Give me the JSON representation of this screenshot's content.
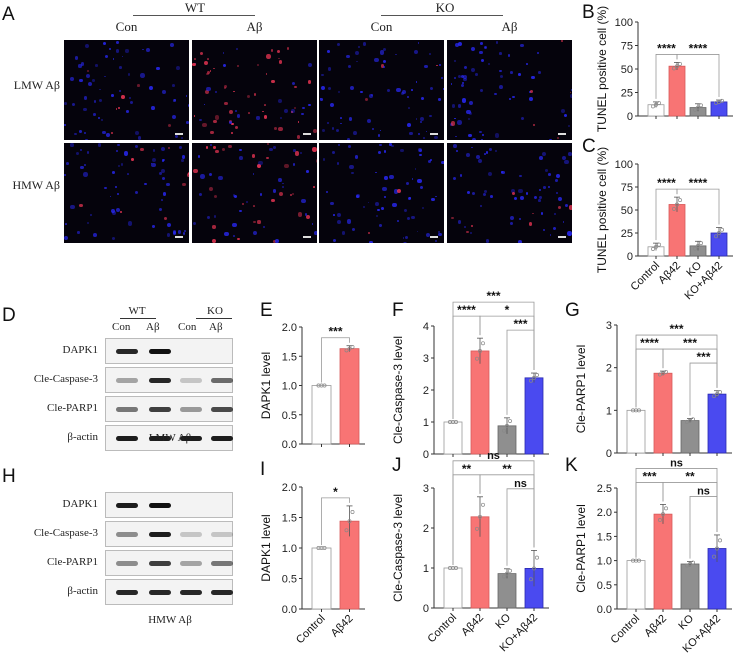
{
  "panels": {
    "A": {
      "letter": "A",
      "group_headers": [
        "WT",
        "KO"
      ],
      "column_labels": [
        "Con",
        "Aβ",
        "Con",
        "Aβ"
      ],
      "row_labels": [
        "LMW Aβ",
        "HMW Aβ"
      ],
      "stain_colors": {
        "nuclei": "#2a2aff",
        "tunel": "#ff3a5a"
      }
    },
    "D": {
      "letter": "D",
      "group_headers": [
        "WT",
        "KO"
      ],
      "lane_labels": [
        "Con",
        "Aβ",
        "Con",
        "Aβ"
      ],
      "rows": [
        "DAPK1",
        "Cle-Caspase-3",
        "Cle-PARP1",
        "β-actin"
      ],
      "caption": "LMW Aβ"
    },
    "H": {
      "letter": "H",
      "rows": [
        "DAPK1",
        "Cle-Caspase-3",
        "Cle-PARP1",
        "β-actin"
      ],
      "caption": "HMW Aβ"
    }
  },
  "colors": {
    "control": "#ffffff",
    "abeta42": "#f87474",
    "ko": "#8f8f8f",
    "ko_abeta42": "#4a4af0"
  },
  "chart_data": [
    {
      "panel": "B",
      "type": "bar",
      "ylabel": "TUNEL positive cell (%)",
      "ylim": [
        0,
        100
      ],
      "yticks": [
        0,
        25,
        50,
        75,
        100
      ],
      "categories": [
        "Control",
        "Aβ42",
        "KO",
        "KO+Aβ42"
      ],
      "values": [
        12,
        53,
        9,
        15
      ],
      "errors": [
        3,
        4,
        4,
        2
      ],
      "show_xlabels": false,
      "significance": [
        {
          "from": 0,
          "to": 1,
          "label": "****",
          "level": 0
        },
        {
          "from": 1,
          "to": 3,
          "label": "****",
          "level": 0
        }
      ]
    },
    {
      "panel": "C",
      "type": "bar",
      "ylabel": "TUNEL positive cell (%)",
      "ylim": [
        0,
        100
      ],
      "yticks": [
        0,
        25,
        50,
        75,
        100
      ],
      "categories": [
        "Control",
        "Aβ42",
        "KO",
        "KO+Aβ42"
      ],
      "values": [
        10,
        56,
        11,
        25
      ],
      "errors": [
        4,
        8,
        5,
        6
      ],
      "show_xlabels": true,
      "significance": [
        {
          "from": 0,
          "to": 1,
          "label": "****",
          "level": 0
        },
        {
          "from": 1,
          "to": 3,
          "label": "****",
          "level": 0
        }
      ]
    },
    {
      "panel": "E",
      "type": "bar",
      "ylabel": "DAPK1 level",
      "ylim": [
        0,
        2.0
      ],
      "yticks": [
        0.0,
        0.5,
        1.0,
        1.5,
        2.0
      ],
      "categories": [
        "Control",
        "Aβ42"
      ],
      "values": [
        1.0,
        1.63
      ],
      "errors": [
        0,
        0.05
      ],
      "show_xlabels": false,
      "significance": [
        {
          "from": 0,
          "to": 1,
          "label": "***",
          "level": 0
        }
      ]
    },
    {
      "panel": "F",
      "type": "bar",
      "ylabel": "Cle-Caspase-3 level",
      "ylim": [
        0,
        4
      ],
      "yticks": [
        0,
        1,
        2,
        3,
        4
      ],
      "categories": [
        "Control",
        "Aβ42",
        "KO",
        "KO+Aβ42"
      ],
      "values": [
        1.0,
        3.22,
        0.88,
        2.38
      ],
      "errors": [
        0,
        0.4,
        0.25,
        0.15
      ],
      "show_xlabels": false,
      "significance": [
        {
          "from": 0,
          "to": 3,
          "label": "***",
          "level": 2
        },
        {
          "from": 0,
          "to": 1,
          "label": "****",
          "level": 1
        },
        {
          "from": 1,
          "to": 3,
          "label": "*",
          "level": 1
        },
        {
          "from": 2,
          "to": 3,
          "label": "***",
          "level": 0
        }
      ]
    },
    {
      "panel": "G",
      "type": "bar",
      "ylabel": "Cle-PARP1 level",
      "ylim": [
        0,
        3
      ],
      "yticks": [
        0,
        1,
        2,
        3
      ],
      "categories": [
        "Control",
        "Aβ42",
        "KO",
        "KO+Aβ42"
      ],
      "values": [
        1.0,
        1.87,
        0.76,
        1.38
      ],
      "errors": [
        0,
        0.05,
        0.05,
        0.08
      ],
      "show_xlabels": false,
      "significance": [
        {
          "from": 0,
          "to": 3,
          "label": "***",
          "level": 2
        },
        {
          "from": 0,
          "to": 1,
          "label": "****",
          "level": 1
        },
        {
          "from": 1,
          "to": 3,
          "label": "***",
          "level": 1
        },
        {
          "from": 2,
          "to": 3,
          "label": "***",
          "level": 0
        }
      ]
    },
    {
      "panel": "I",
      "type": "bar",
      "ylabel": "DAPK1 level",
      "ylim": [
        0,
        2.0
      ],
      "yticks": [
        0.0,
        0.5,
        1.0,
        1.5,
        2.0
      ],
      "categories": [
        "Control",
        "Aβ42"
      ],
      "values": [
        1.0,
        1.44
      ],
      "errors": [
        0,
        0.25
      ],
      "show_xlabels": true,
      "significance": [
        {
          "from": 0,
          "to": 1,
          "label": "*",
          "level": 0
        }
      ]
    },
    {
      "panel": "J",
      "type": "bar",
      "ylabel": "Cle-Caspase-3 level",
      "ylim": [
        0,
        3
      ],
      "yticks": [
        0,
        1,
        2,
        3
      ],
      "categories": [
        "Control",
        "Aβ42",
        "KO",
        "KO+Aβ42"
      ],
      "values": [
        1.0,
        2.28,
        0.86,
        0.99
      ],
      "errors": [
        0,
        0.5,
        0.12,
        0.45
      ],
      "show_xlabels": true,
      "significance": [
        {
          "from": 0,
          "to": 3,
          "label": "ns",
          "level": 2
        },
        {
          "from": 0,
          "to": 1,
          "label": "**",
          "level": 1
        },
        {
          "from": 1,
          "to": 3,
          "label": "**",
          "level": 1
        },
        {
          "from": 2,
          "to": 3,
          "label": "ns",
          "level": 0
        }
      ]
    },
    {
      "panel": "K",
      "type": "bar",
      "ylabel": "Cle-PARP1 level",
      "ylim": [
        0,
        2.5
      ],
      "yticks": [
        0.0,
        0.5,
        1.0,
        1.5,
        2.0,
        2.5
      ],
      "categories": [
        "Control",
        "Aβ42",
        "KO",
        "KO+Aβ42"
      ],
      "values": [
        1.0,
        1.96,
        0.93,
        1.25
      ],
      "errors": [
        0,
        0.2,
        0.05,
        0.28
      ],
      "show_xlabels": true,
      "significance": [
        {
          "from": 0,
          "to": 3,
          "label": "ns",
          "level": 2
        },
        {
          "from": 0,
          "to": 1,
          "label": "***",
          "level": 1
        },
        {
          "from": 1,
          "to": 3,
          "label": "**",
          "level": 1
        },
        {
          "from": 2,
          "to": 3,
          "label": "ns",
          "level": 0
        }
      ]
    }
  ]
}
